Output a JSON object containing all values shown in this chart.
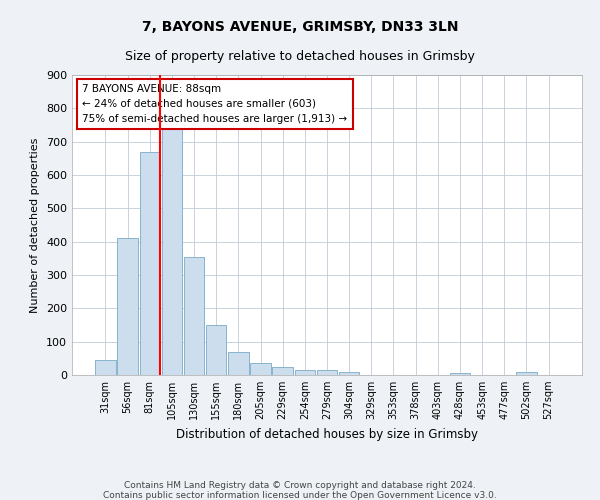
{
  "title": "7, BAYONS AVENUE, GRIMSBY, DN33 3LN",
  "subtitle": "Size of property relative to detached houses in Grimsby",
  "xlabel": "Distribution of detached houses by size in Grimsby",
  "ylabel": "Number of detached properties",
  "categories": [
    "31sqm",
    "56sqm",
    "81sqm",
    "105sqm",
    "130sqm",
    "155sqm",
    "180sqm",
    "205sqm",
    "229sqm",
    "254sqm",
    "279sqm",
    "304sqm",
    "329sqm",
    "353sqm",
    "378sqm",
    "403sqm",
    "428sqm",
    "453sqm",
    "477sqm",
    "502sqm",
    "527sqm"
  ],
  "values": [
    45,
    410,
    670,
    750,
    355,
    150,
    70,
    35,
    25,
    15,
    15,
    10,
    0,
    0,
    0,
    0,
    5,
    0,
    0,
    10,
    0
  ],
  "bar_color": "#ccdded",
  "bar_edge_color": "#7aaac8",
  "red_line_index": 2,
  "annotation_line1": "7 BAYONS AVENUE: 88sqm",
  "annotation_line2": "← 24% of detached houses are smaller (603)",
  "annotation_line3": "75% of semi-detached houses are larger (1,913) →",
  "annotation_box_color": "#ffffff",
  "annotation_box_edge_color": "#cc0000",
  "ylim": [
    0,
    900
  ],
  "yticks": [
    0,
    100,
    200,
    300,
    400,
    500,
    600,
    700,
    800,
    900
  ],
  "footer_line1": "Contains HM Land Registry data © Crown copyright and database right 2024.",
  "footer_line2": "Contains public sector information licensed under the Open Government Licence v3.0.",
  "bg_color": "#eef2f6",
  "plot_bg_color": "#ffffff",
  "grid_color": "#c0ccd8",
  "title_fontsize": 10,
  "subtitle_fontsize": 9
}
